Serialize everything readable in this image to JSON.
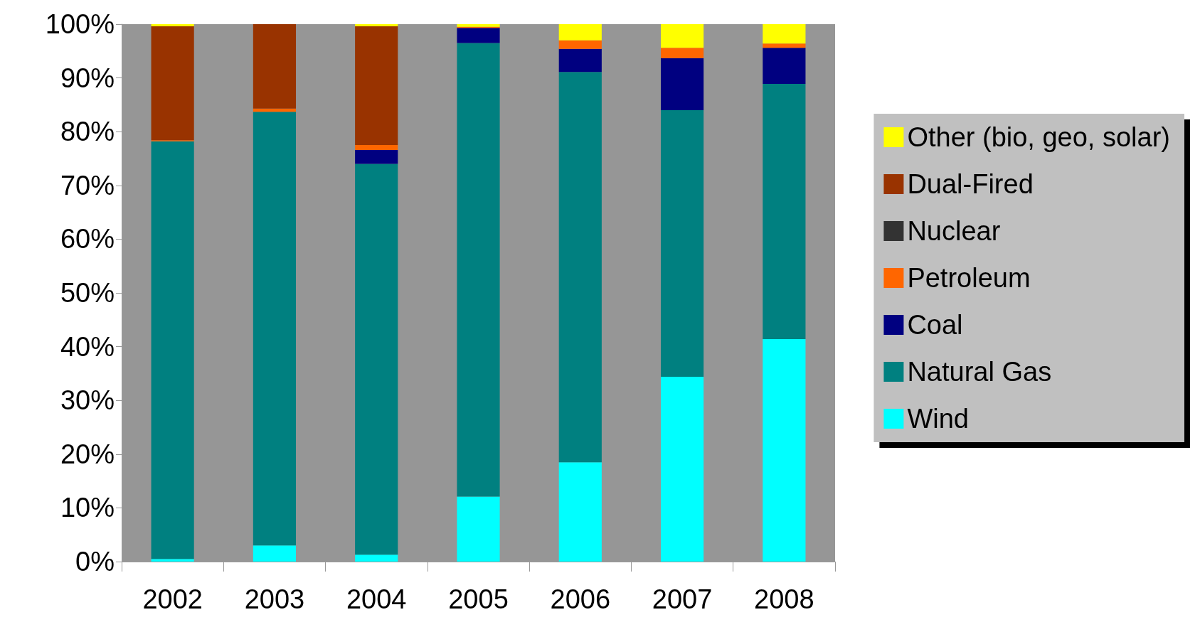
{
  "chart_data": {
    "type": "bar",
    "stacked": true,
    "categories": [
      "2002",
      "2003",
      "2004",
      "2005",
      "2006",
      "2007",
      "2008"
    ],
    "series": [
      {
        "name": "Wind",
        "color": "#00ffff",
        "values": [
          0.5,
          3,
          1.3,
          12.1,
          18.5,
          34.4,
          41.4
        ]
      },
      {
        "name": "Natural Gas",
        "color": "#008080",
        "values": [
          77.7,
          80.7,
          72.7,
          84.4,
          72.6,
          49.6,
          47.5
        ]
      },
      {
        "name": "Coal",
        "color": "#000080",
        "values": [
          0,
          0,
          2.6,
          2.8,
          4.3,
          9.7,
          6.7
        ]
      },
      {
        "name": "Petroleum",
        "color": "#ff6600",
        "values": [
          0.2,
          0.6,
          0.9,
          0.2,
          1.6,
          1.9,
          0.8
        ]
      },
      {
        "name": "Nuclear",
        "color": "#333333",
        "values": [
          0,
          0,
          0,
          0,
          0,
          0,
          0
        ]
      },
      {
        "name": "Dual-Fired",
        "color": "#993300",
        "values": [
          21.2,
          15.7,
          22.1,
          0,
          0,
          0,
          0
        ]
      },
      {
        "name": "Other (bio, geo, solar)",
        "color": "#ffff00",
        "values": [
          0.4,
          0,
          0.4,
          0.5,
          3,
          4.4,
          3.6
        ]
      }
    ],
    "ylim": [
      0,
      100
    ],
    "yticks": [
      {
        "value": 0,
        "label": "0%"
      },
      {
        "value": 10,
        "label": "10%"
      },
      {
        "value": 20,
        "label": "20%"
      },
      {
        "value": 30,
        "label": "30%"
      },
      {
        "value": 40,
        "label": "40%"
      },
      {
        "value": 50,
        "label": "50%"
      },
      {
        "value": 60,
        "label": "60%"
      },
      {
        "value": 70,
        "label": "70%"
      },
      {
        "value": 80,
        "label": "80%"
      },
      {
        "value": 90,
        "label": "90%"
      },
      {
        "value": 100,
        "label": "100%"
      }
    ],
    "grid": false,
    "legend": "right"
  }
}
